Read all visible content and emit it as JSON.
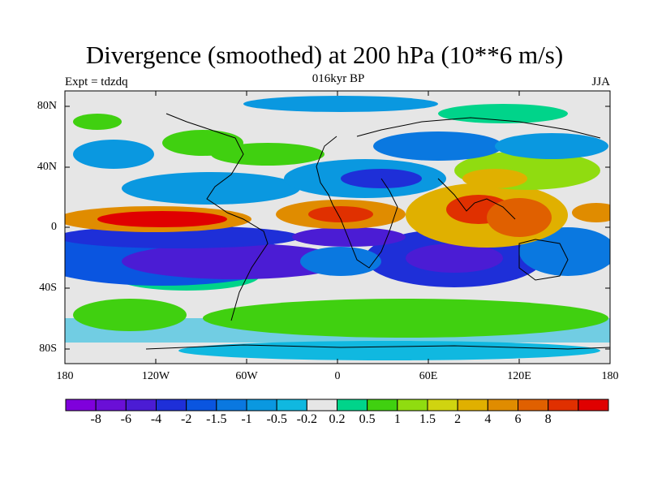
{
  "title": "Divergence (smoothed) at 200 hPa (10**6 m/s)",
  "subtitle_left": "Expt = tdzdq",
  "subtitle_center": "016kyr BP",
  "subtitle_right": "JJA",
  "lat_ticks": [
    "80N",
    "40N",
    "0",
    "40S",
    "80S"
  ],
  "lon_ticks": [
    "180",
    "120W",
    "60W",
    "0",
    "60E",
    "120E",
    "180"
  ],
  "colorbar": {
    "colors": [
      "#7f00dc",
      "#6a0fd6",
      "#4b1cd4",
      "#1e2fd8",
      "#0a55e0",
      "#0a78e0",
      "#0a98e0",
      "#10b8e0",
      "#e6e6e6",
      "#00d48a",
      "#40d010",
      "#90dc10",
      "#d0d410",
      "#e0b000",
      "#e08c00",
      "#e06000",
      "#e03000",
      "#e00000"
    ],
    "labels": [
      "-8",
      "-6",
      "-4",
      "-2",
      "-1.5",
      "-1",
      "-0.5",
      "-0.2",
      "0.2",
      "0.5",
      "1",
      "1.5",
      "2",
      "4",
      "6",
      "8"
    ]
  }
}
